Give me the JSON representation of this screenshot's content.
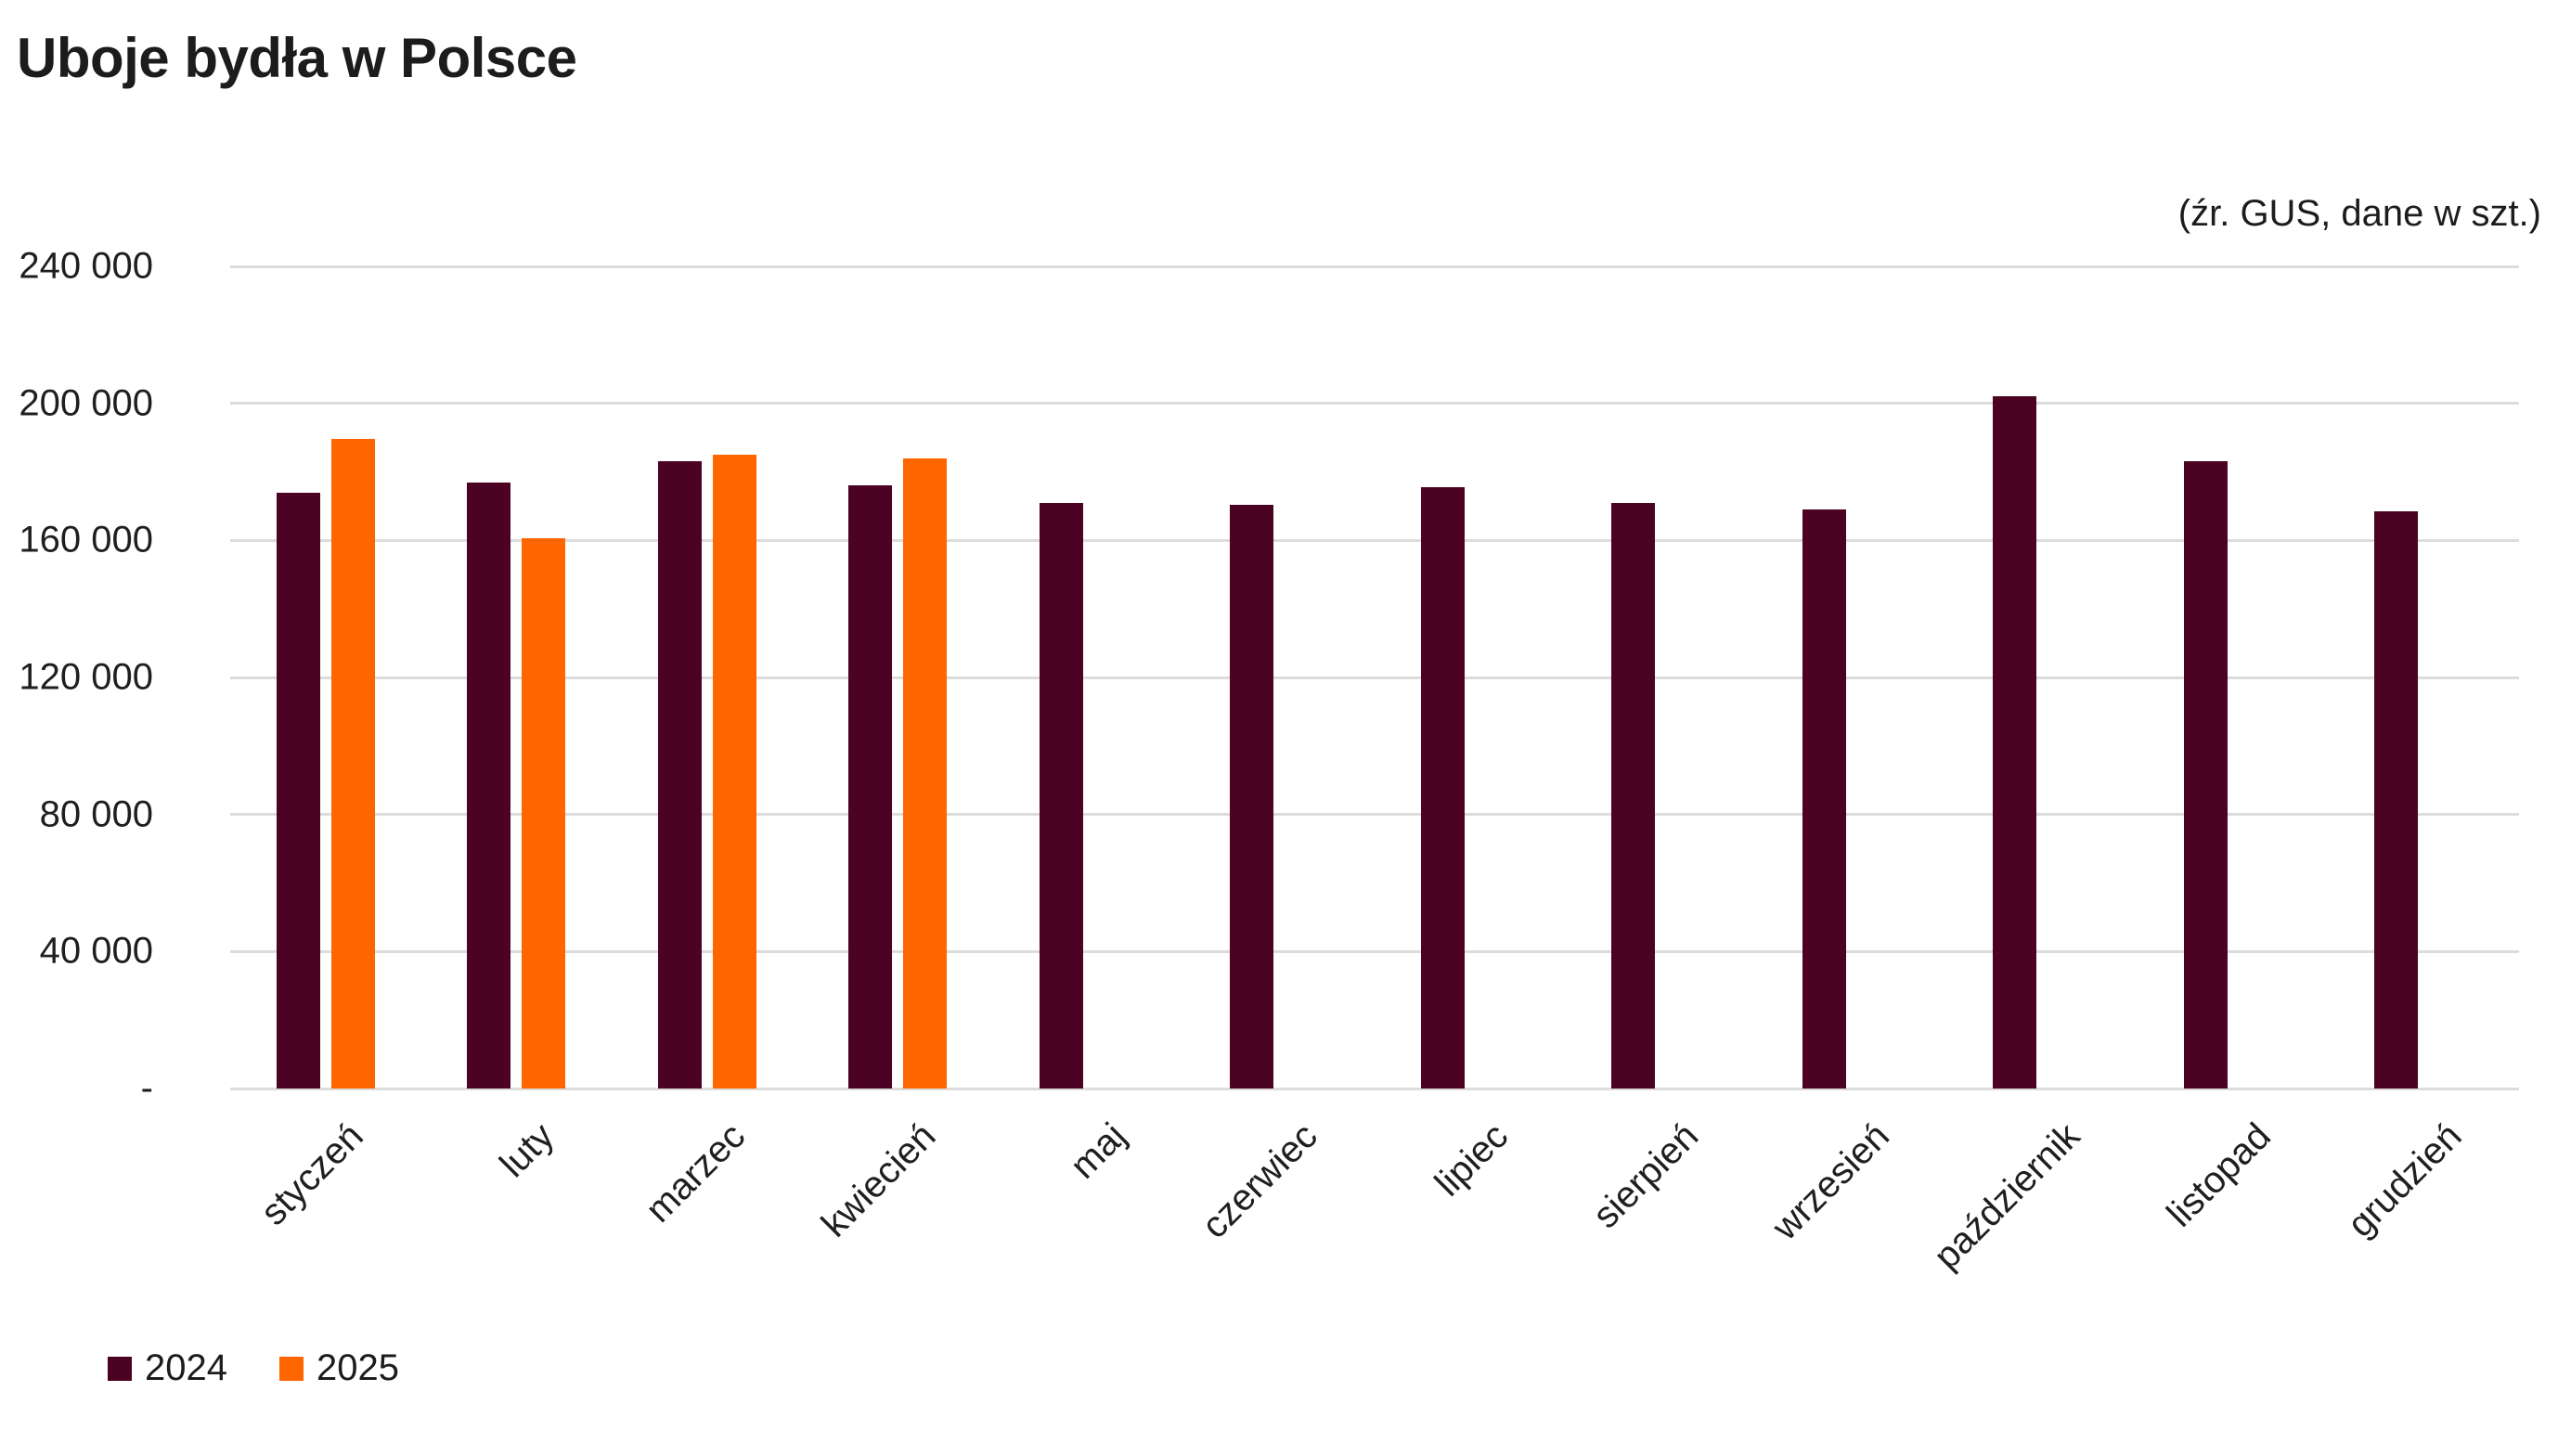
{
  "title": "Uboje bydła w Polsce",
  "source_note": "(źr. GUS, dane w szt.)",
  "chart_data": {
    "type": "bar",
    "title": "Uboje bydła w Polsce",
    "source_note": "(źr. GUS, dane w szt.)",
    "categories": [
      "styczeń",
      "luty",
      "marzec",
      "kwiecień",
      "maj",
      "czerwiec",
      "lipiec",
      "sierpień",
      "wrzesień",
      "październik",
      "listopad",
      "grudzień"
    ],
    "series": [
      {
        "name": "2024",
        "color": "#4C0223",
        "values": [
          174000,
          177000,
          183000,
          176000,
          171000,
          170500,
          175500,
          171000,
          169000,
          202000,
          183000,
          168500
        ]
      },
      {
        "name": "2025",
        "color": "#FF6600",
        "values": [
          189500,
          160500,
          185000,
          184000,
          null,
          null,
          null,
          null,
          null,
          null,
          null,
          null
        ]
      }
    ],
    "ylim": [
      0,
      240000
    ],
    "yticks": [
      0,
      40000,
      80000,
      120000,
      160000,
      200000,
      240000
    ],
    "ytick_labels": [
      "-",
      "40 000",
      "80 000",
      "120 000",
      "160 000",
      "200 000",
      "240 000"
    ],
    "grid": "horizontal",
    "legend_position": "bottom-left",
    "gridline_color": "#dcdcdc"
  }
}
